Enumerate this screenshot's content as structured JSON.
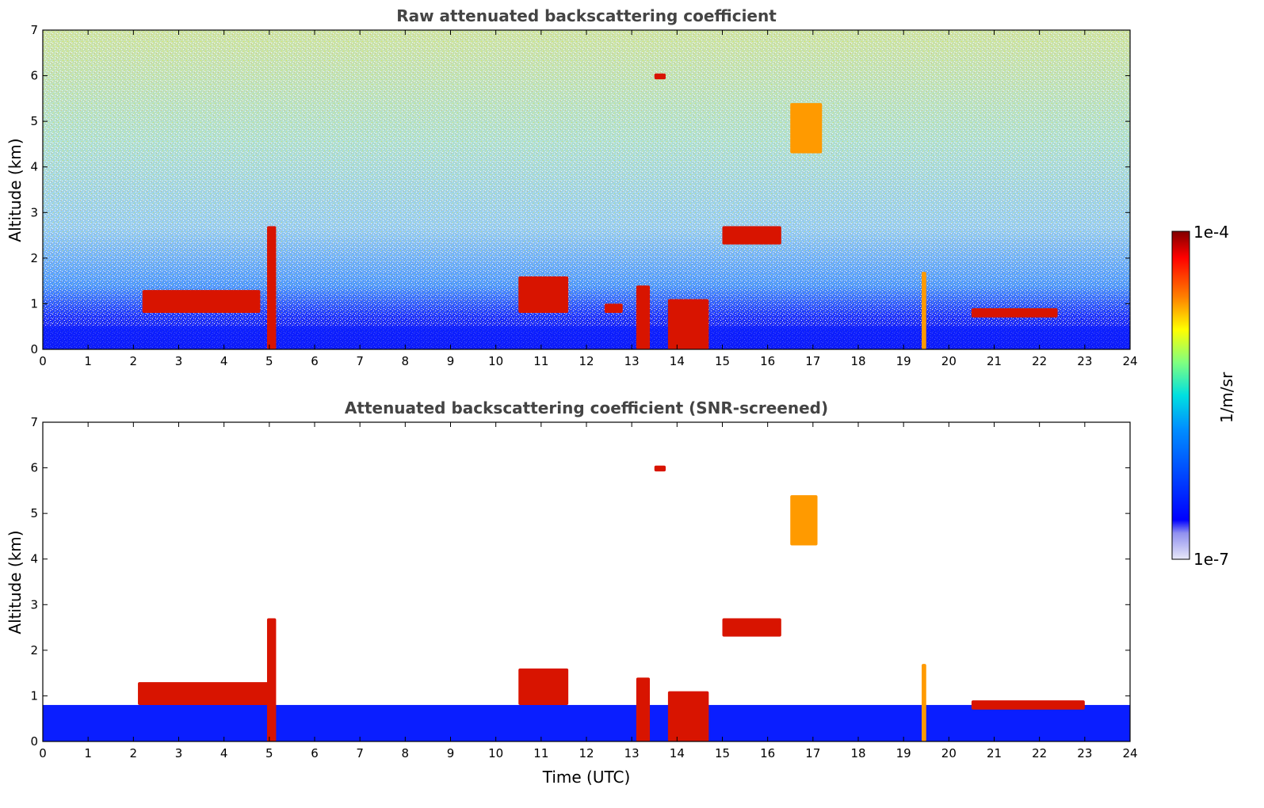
{
  "chart_data": [
    {
      "type": "heatmap",
      "title": "Raw attenuated backscattering coefficient",
      "xlabel": "",
      "ylabel": "Altitude (km)",
      "xlim": [
        0,
        24
      ],
      "ylim": [
        0,
        7
      ],
      "xticks": [
        "0",
        "1",
        "2",
        "3",
        "4",
        "5",
        "6",
        "7",
        "8",
        "9",
        "10",
        "11",
        "12",
        "13",
        "14",
        "15",
        "16",
        "17",
        "18",
        "19",
        "20",
        "21",
        "22",
        "23",
        "24"
      ],
      "yticks": [
        "0",
        "1",
        "2",
        "3",
        "4",
        "5",
        "6",
        "7"
      ],
      "noise": true,
      "boundary_layer_top_km": 0.5,
      "features": [
        {
          "name": "plume",
          "t0": 4.95,
          "t1": 5.15,
          "z0": 0,
          "z1": 2.7,
          "level": "high"
        },
        {
          "name": "plume",
          "t0": 19.4,
          "t1": 19.5,
          "z0": 0,
          "z1": 1.7,
          "level": "mid"
        },
        {
          "name": "low cloud",
          "t0": 13.1,
          "t1": 13.4,
          "z0": 0,
          "z1": 1.4,
          "level": "high"
        },
        {
          "name": "low cloud",
          "t0": 13.8,
          "t1": 14.7,
          "z0": 0,
          "z1": 1.1,
          "level": "high"
        },
        {
          "name": "mid cloud",
          "t0": 15.0,
          "t1": 16.3,
          "z0": 2.3,
          "z1": 2.7,
          "level": "high"
        },
        {
          "name": "cirrus",
          "t0": 16.5,
          "t1": 17.2,
          "z0": 4.3,
          "z1": 5.4,
          "level": "mid"
        },
        {
          "name": "high cloud",
          "t0": 13.5,
          "t1": 13.75,
          "z0": 5.92,
          "z1": 6.05,
          "level": "high"
        },
        {
          "name": "cloud tops",
          "t0": 2.2,
          "t1": 4.8,
          "z0": 0.8,
          "z1": 1.3,
          "level": "high"
        },
        {
          "name": "cloud tops",
          "t0": 10.5,
          "t1": 11.6,
          "z0": 0.8,
          "z1": 1.6,
          "level": "high"
        },
        {
          "name": "cloud tops",
          "t0": 12.4,
          "t1": 12.8,
          "z0": 0.8,
          "z1": 1.0,
          "level": "high"
        },
        {
          "name": "cloud tops",
          "t0": 20.5,
          "t1": 22.4,
          "z0": 0.7,
          "z1": 0.9,
          "level": "high"
        }
      ]
    },
    {
      "type": "heatmap",
      "title": "Attenuated backscattering coefficient (SNR-screened)",
      "xlabel": "Time (UTC)",
      "ylabel": "Altitude (km)",
      "xlim": [
        0,
        24
      ],
      "ylim": [
        0,
        7
      ],
      "xticks": [
        "0",
        "1",
        "2",
        "3",
        "4",
        "5",
        "6",
        "7",
        "8",
        "9",
        "10",
        "11",
        "12",
        "13",
        "14",
        "15",
        "16",
        "17",
        "18",
        "19",
        "20",
        "21",
        "22",
        "23",
        "24"
      ],
      "yticks": [
        "0",
        "1",
        "2",
        "3",
        "4",
        "5",
        "6",
        "7"
      ],
      "noise": false,
      "boundary_layer_top_km": 0.8,
      "features": [
        {
          "name": "plume",
          "t0": 4.95,
          "t1": 5.15,
          "z0": 0,
          "z1": 2.7,
          "level": "high"
        },
        {
          "name": "plume",
          "t0": 19.4,
          "t1": 19.5,
          "z0": 0,
          "z1": 1.7,
          "level": "mid"
        },
        {
          "name": "low cloud",
          "t0": 13.1,
          "t1": 13.4,
          "z0": 0,
          "z1": 1.4,
          "level": "high"
        },
        {
          "name": "low cloud",
          "t0": 13.8,
          "t1": 14.7,
          "z0": 0,
          "z1": 1.1,
          "level": "high"
        },
        {
          "name": "mid cloud",
          "t0": 15.0,
          "t1": 16.3,
          "z0": 2.3,
          "z1": 2.7,
          "level": "high"
        },
        {
          "name": "cirrus",
          "t0": 16.5,
          "t1": 17.1,
          "z0": 4.3,
          "z1": 5.4,
          "level": "mid"
        },
        {
          "name": "high cloud",
          "t0": 13.5,
          "t1": 13.75,
          "z0": 5.92,
          "z1": 6.05,
          "level": "high"
        },
        {
          "name": "cloud tops",
          "t0": 2.1,
          "t1": 5.0,
          "z0": 0.8,
          "z1": 1.3,
          "level": "high"
        },
        {
          "name": "cloud tops",
          "t0": 10.5,
          "t1": 11.6,
          "z0": 0.8,
          "z1": 1.6,
          "level": "high"
        },
        {
          "name": "cloud tops",
          "t0": 20.5,
          "t1": 23.0,
          "z0": 0.7,
          "z1": 0.9,
          "level": "high"
        }
      ]
    }
  ],
  "colorbar": {
    "label": "1/m/sr",
    "max_label": "1e-4",
    "min_label": "1e-7",
    "colors": [
      "#e8e8f8",
      "#0000ff",
      "#0080ff",
      "#00e0e0",
      "#80ff80",
      "#ffff00",
      "#ff8000",
      "#ff0000",
      "#800000"
    ]
  }
}
